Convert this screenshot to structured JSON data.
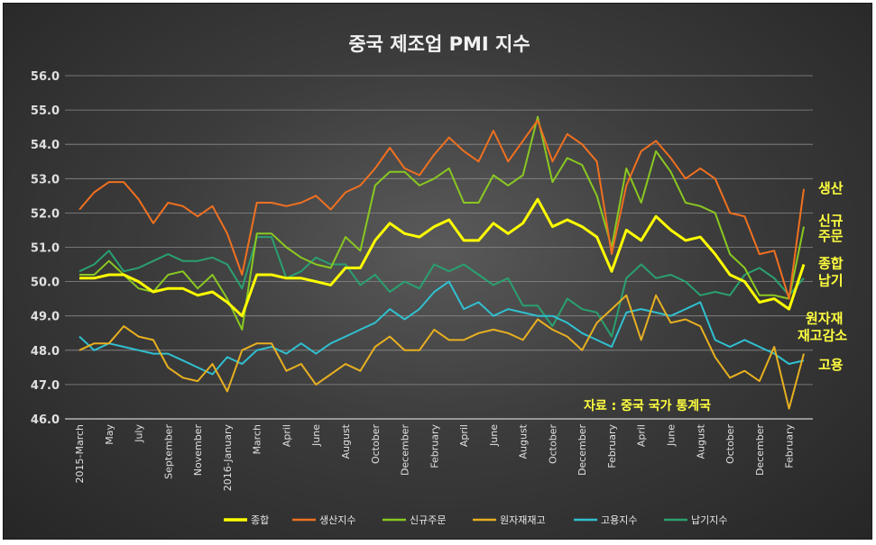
{
  "chart_data": {
    "type": "line",
    "title": "중국 제조업 PMI 지수",
    "source_note": "자료 : 중국 국가 통계국",
    "ylim": [
      46.0,
      56.0
    ],
    "y_ticks": [
      "46.0",
      "47.0",
      "48.0",
      "49.0",
      "50.0",
      "51.0",
      "52.0",
      "53.0",
      "54.0",
      "55.0",
      "56.0"
    ],
    "x_tick_labels": [
      "2015-March",
      "May",
      "July",
      "September",
      "November",
      "2016-January",
      "March",
      "April",
      "June",
      "August",
      "October",
      "December",
      "February",
      "April",
      "June",
      "August",
      "October",
      "December",
      "February",
      "April",
      "June",
      "August",
      "October",
      "December",
      "February"
    ],
    "x_tick_index": [
      0,
      2,
      4,
      6,
      8,
      10,
      12,
      14,
      16,
      18,
      20,
      22,
      24,
      26,
      28,
      30,
      32,
      34,
      36,
      38,
      40,
      42,
      44,
      46,
      48
    ],
    "series": [
      {
        "name": "종합",
        "color": "#ffff00",
        "width": 3,
        "values": [
          50.1,
          50.1,
          50.2,
          50.2,
          50.0,
          49.7,
          49.8,
          49.8,
          49.6,
          49.7,
          49.4,
          49.0,
          50.2,
          50.2,
          50.1,
          50.1,
          50.0,
          49.9,
          50.4,
          50.4,
          51.2,
          51.7,
          51.4,
          51.3,
          51.6,
          51.8,
          51.2,
          51.2,
          51.7,
          51.4,
          51.7,
          52.4,
          51.6,
          51.8,
          51.6,
          51.3,
          50.3,
          51.5,
          51.2,
          51.9,
          51.5,
          51.2,
          51.3,
          50.8,
          50.2,
          50.0,
          49.4,
          49.5,
          49.2,
          50.5
        ]
      },
      {
        "name": "생산지수",
        "color": "#f07020",
        "width": 2,
        "values": [
          52.1,
          52.6,
          52.9,
          52.9,
          52.4,
          51.7,
          52.3,
          52.2,
          51.9,
          52.2,
          51.4,
          50.2,
          52.3,
          52.3,
          52.2,
          52.3,
          52.5,
          52.1,
          52.6,
          52.8,
          53.3,
          53.9,
          53.3,
          53.1,
          53.7,
          54.2,
          53.8,
          53.5,
          54.4,
          53.5,
          54.1,
          54.7,
          53.5,
          54.3,
          54.0,
          53.5,
          50.8,
          52.8,
          53.8,
          54.1,
          53.6,
          53.0,
          53.3,
          53.0,
          52.0,
          51.9,
          50.8,
          50.9,
          49.5,
          52.7
        ]
      },
      {
        "name": "신규주문",
        "color": "#8ac820",
        "width": 2,
        "values": [
          50.2,
          50.2,
          50.6,
          50.2,
          49.8,
          49.7,
          50.2,
          50.3,
          49.8,
          50.2,
          49.5,
          48.6,
          51.4,
          51.4,
          51.0,
          50.7,
          50.5,
          50.4,
          51.3,
          50.9,
          52.8,
          53.2,
          53.2,
          52.8,
          53.0,
          53.3,
          52.3,
          52.3,
          53.1,
          52.8,
          53.1,
          54.8,
          52.9,
          53.6,
          53.4,
          52.5,
          51.0,
          53.3,
          52.3,
          53.8,
          53.2,
          52.3,
          52.2,
          52.0,
          50.8,
          50.4,
          49.6,
          49.6,
          49.5,
          51.6
        ]
      },
      {
        "name": "원자재재고",
        "color": "#e8b020",
        "width": 2,
        "values": [
          48.0,
          48.2,
          48.2,
          48.7,
          48.4,
          48.3,
          47.5,
          47.2,
          47.1,
          47.6,
          46.8,
          48.0,
          48.2,
          48.2,
          47.4,
          47.6,
          47.0,
          47.3,
          47.6,
          47.4,
          48.1,
          48.4,
          48.0,
          48.0,
          48.6,
          48.3,
          48.3,
          48.5,
          48.6,
          48.5,
          48.3,
          48.9,
          48.6,
          48.4,
          48.0,
          48.8,
          49.2,
          49.6,
          48.3,
          49.6,
          48.8,
          48.9,
          48.7,
          47.8,
          47.2,
          47.4,
          47.1,
          48.1,
          46.3,
          47.9
        ]
      },
      {
        "name": "고용지수",
        "color": "#30c0d0",
        "width": 2,
        "values": [
          48.4,
          48.0,
          48.2,
          48.1,
          48.0,
          47.9,
          47.9,
          47.7,
          47.5,
          47.3,
          47.8,
          47.6,
          48.0,
          48.1,
          47.9,
          48.2,
          47.9,
          48.2,
          48.4,
          48.6,
          48.8,
          49.2,
          48.9,
          49.2,
          49.7,
          50.0,
          49.2,
          49.4,
          49.0,
          49.2,
          49.1,
          49.0,
          49.0,
          48.8,
          48.5,
          48.3,
          48.1,
          49.1,
          49.2,
          49.1,
          49.0,
          49.2,
          49.4,
          48.3,
          48.1,
          48.3,
          48.1,
          47.9,
          47.6,
          47.7
        ]
      },
      {
        "name": "납기지수",
        "color": "#2aa070",
        "width": 2,
        "values": [
          50.3,
          50.5,
          50.9,
          50.3,
          50.4,
          50.6,
          50.8,
          50.6,
          50.6,
          50.7,
          50.5,
          49.8,
          51.3,
          51.3,
          50.1,
          50.3,
          50.7,
          50.5,
          50.5,
          49.9,
          50.2,
          49.7,
          50.0,
          49.8,
          50.5,
          50.3,
          50.5,
          50.2,
          49.9,
          50.1,
          49.3,
          49.3,
          48.7,
          49.5,
          49.2,
          49.1,
          48.4,
          50.1,
          50.5,
          50.1,
          50.2,
          50.0,
          49.6,
          49.7,
          49.6,
          50.2,
          50.4,
          50.1,
          49.6,
          50.1
        ]
      }
    ],
    "right_annotations": [
      {
        "text": "생산",
        "value": 52.75
      },
      {
        "text": "신규",
        "value": 51.8
      },
      {
        "text": "주문",
        "value": 51.35
      },
      {
        "text": "종합",
        "value": 50.55
      },
      {
        "text": "납기",
        "value": 50.05
      },
      {
        "text": "원자재",
        "value": 48.95
      },
      {
        "text": "재고감소",
        "value": 48.45
      },
      {
        "text": "고용",
        "value": 47.6
      }
    ]
  }
}
